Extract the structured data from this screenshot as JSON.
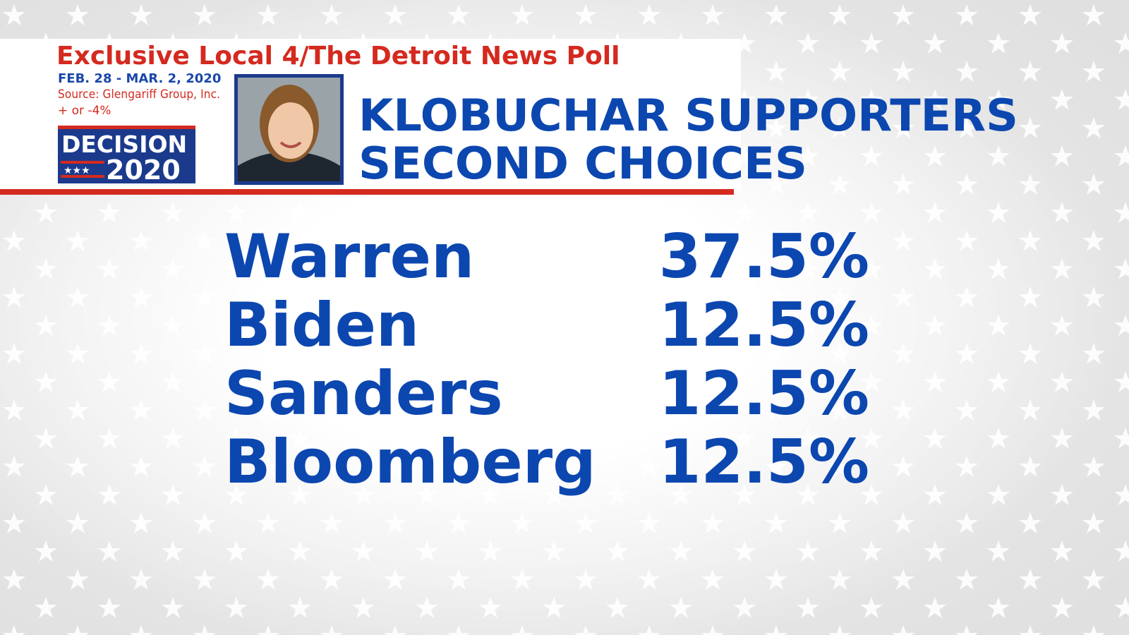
{
  "header": {
    "title": "Exclusive Local 4/The Detroit News Poll",
    "dates": "FEB. 28 - MAR. 2, 2020",
    "source": "Source: Glengariff Group, Inc.",
    "margin": "+ or -4%"
  },
  "logo": {
    "line1": "DECISION",
    "line2": "2020"
  },
  "headline": {
    "line1": "KLOBUCHAR SUPPORTERS",
    "line2": "SECOND CHOICES"
  },
  "table": {
    "rows": [
      [
        "Warren",
        "37.5%"
      ],
      [
        "Biden",
        "12.5%"
      ],
      [
        "Sanders",
        "12.5%"
      ],
      [
        "Bloomberg",
        "12.5%"
      ]
    ]
  }
}
